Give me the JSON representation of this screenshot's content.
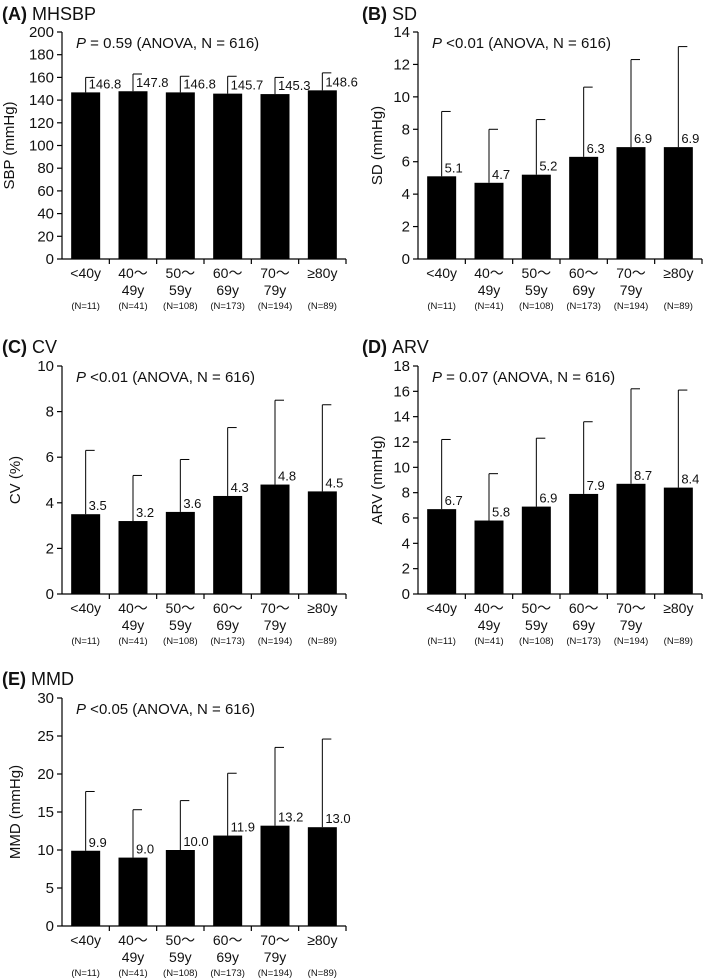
{
  "chart_data": [
    {
      "type": "bar",
      "id": "mhsbp",
      "panel_letter": "(A)",
      "title": "MHSBP",
      "p_prefix": "P",
      "stat": " = 0.59 (ANOVA, N = 616)",
      "ylabel": "SBP (mmHg)",
      "ylim": [
        0,
        200
      ],
      "yticks": [
        "0",
        "20",
        "40",
        "60",
        "80",
        "100",
        "120",
        "140",
        "160",
        "180",
        "200"
      ],
      "categories": [
        "<40y",
        "40～49y",
        "50～59y",
        "60～69y",
        "70～79y",
        "≥80y"
      ],
      "category_lines": [
        [
          "<40y"
        ],
        [
          "40～",
          "49y"
        ],
        [
          "50～",
          "59y"
        ],
        [
          "60～",
          "69y"
        ],
        [
          "70～",
          "79y"
        ],
        [
          "≥80y"
        ]
      ],
      "n_labels": [
        "(N=11)",
        "(N=41)",
        "(N=108)",
        "(N=173)",
        "(N=194)",
        "(N=89)"
      ],
      "values": [
        146.8,
        147.8,
        146.8,
        145.7,
        145.3,
        148.6
      ],
      "value_labels": [
        "146.8",
        "147.8",
        "146.8",
        "145.7",
        "145.3",
        "148.6"
      ],
      "error_upper": [
        160,
        163,
        161,
        161,
        160,
        164
      ]
    },
    {
      "type": "bar",
      "id": "sd",
      "panel_letter": "(B)",
      "title": "SD",
      "p_prefix": "P",
      "stat": " <0.01 (ANOVA, N = 616)",
      "ylabel": "SD (mmHg)",
      "ylim": [
        0,
        14
      ],
      "yticks": [
        "0",
        "2",
        "4",
        "6",
        "8",
        "10",
        "12",
        "14"
      ],
      "categories": [
        "<40y",
        "40～49y",
        "50～59y",
        "60～69y",
        "70～79y",
        "≥80y"
      ],
      "category_lines": [
        [
          "<40y"
        ],
        [
          "40～",
          "49y"
        ],
        [
          "50～",
          "59y"
        ],
        [
          "60～",
          "69y"
        ],
        [
          "70～",
          "79y"
        ],
        [
          "≥80y"
        ]
      ],
      "n_labels": [
        "(N=11)",
        "(N=41)",
        "(N=108)",
        "(N=173)",
        "(N=194)",
        "(N=89)"
      ],
      "values": [
        5.1,
        4.7,
        5.2,
        6.3,
        6.9,
        6.9
      ],
      "value_labels": [
        "5.1",
        "4.7",
        "5.2",
        "6.3",
        "6.9",
        "6.9"
      ],
      "error_upper": [
        9.1,
        8.0,
        8.6,
        10.6,
        12.3,
        13.1
      ]
    },
    {
      "type": "bar",
      "id": "cv",
      "panel_letter": "(C)",
      "title": "CV",
      "p_prefix": "P",
      "stat": " <0.01 (ANOVA, N = 616)",
      "ylabel": "CV (%)",
      "ylim": [
        0,
        10
      ],
      "yticks": [
        "0",
        "2",
        "4",
        "6",
        "8",
        "10"
      ],
      "categories": [
        "<40y",
        "40～49y",
        "50～59y",
        "60～69y",
        "70～79y",
        "≥80y"
      ],
      "category_lines": [
        [
          "<40y"
        ],
        [
          "40～",
          "49y"
        ],
        [
          "50～",
          "59y"
        ],
        [
          "60～",
          "69y"
        ],
        [
          "70～",
          "79y"
        ],
        [
          "≥80y"
        ]
      ],
      "n_labels": [
        "(N=11)",
        "(N=41)",
        "(N=108)",
        "(N=173)",
        "(N=194)",
        "(N=89)"
      ],
      "values": [
        3.5,
        3.2,
        3.6,
        4.3,
        4.8,
        4.5
      ],
      "value_labels": [
        "3.5",
        "3.2",
        "3.6",
        "4.3",
        "4.8",
        "4.5"
      ],
      "error_upper": [
        6.3,
        5.2,
        5.9,
        7.3,
        8.5,
        8.3
      ]
    },
    {
      "type": "bar",
      "id": "arv",
      "panel_letter": "(D)",
      "title": "ARV",
      "p_prefix": "P",
      "stat": " = 0.07 (ANOVA, N = 616)",
      "ylabel": "ARV (mmHg)",
      "ylim": [
        0,
        18
      ],
      "yticks": [
        "0",
        "2",
        "4",
        "6",
        "8",
        "10",
        "12",
        "14",
        "16",
        "18"
      ],
      "categories": [
        "<40y",
        "40～49y",
        "50～59y",
        "60～69y",
        "70～79y",
        "≥80y"
      ],
      "category_lines": [
        [
          "<40y"
        ],
        [
          "40～",
          "49y"
        ],
        [
          "50～",
          "59y"
        ],
        [
          "60～",
          "69y"
        ],
        [
          "70～",
          "79y"
        ],
        [
          "≥80y"
        ]
      ],
      "n_labels": [
        "(N=11)",
        "(N=41)",
        "(N=108)",
        "(N=173)",
        "(N=194)",
        "(N=89)"
      ],
      "values": [
        6.7,
        5.8,
        6.9,
        7.9,
        8.7,
        8.4
      ],
      "value_labels": [
        "6.7",
        "5.8",
        "6.9",
        "7.9",
        "8.7",
        "8.4"
      ],
      "error_upper": [
        12.2,
        9.5,
        12.3,
        13.6,
        16.2,
        16.1
      ]
    },
    {
      "type": "bar",
      "id": "mmd",
      "panel_letter": "(E)",
      "title": "MMD",
      "p_prefix": "P",
      "stat": " <0.05 (ANOVA, N = 616)",
      "ylabel": "MMD (mmHg)",
      "ylim": [
        0,
        30
      ],
      "yticks": [
        "0",
        "5",
        "10",
        "15",
        "20",
        "25",
        "30"
      ],
      "categories": [
        "<40y",
        "40～49y",
        "50～59y",
        "60～69y",
        "70～79y",
        "≥80y"
      ],
      "category_lines": [
        [
          "<40y"
        ],
        [
          "40～",
          "49y"
        ],
        [
          "50～",
          "59y"
        ],
        [
          "60～",
          "69y"
        ],
        [
          "70～",
          "79y"
        ],
        [
          "≥80y"
        ]
      ],
      "n_labels": [
        "(N=11)",
        "(N=41)",
        "(N=108)",
        "(N=173)",
        "(N=194)",
        "(N=89)"
      ],
      "values": [
        9.9,
        9.0,
        10.0,
        11.9,
        13.2,
        13.0
      ],
      "value_labels": [
        "9.9",
        "9.0",
        "10.0",
        "11.9",
        "13.2",
        "13.0"
      ],
      "error_upper": [
        17.7,
        15.3,
        16.5,
        20.1,
        23.5,
        24.6
      ]
    }
  ]
}
